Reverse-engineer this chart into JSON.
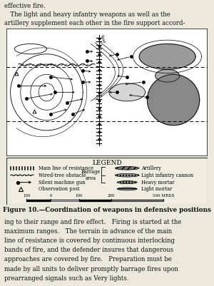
{
  "title": "Figure 10.—Coordination of weapons in defensive positions",
  "bg_color": "#ede8dc",
  "map_bg": "#ffffff",
  "text_color": "#111111",
  "header_texts": [
    "effective fire.",
    "   The light and heavy infantry weapons as well as the",
    "artillery supplement each other in the fire support accord-"
  ],
  "footer_texts": [
    "ing to their range and fire effect.   Firing is started at the",
    "maximum ranges.   The terrain in advance of the main",
    "line of resistance is covered by continuous interlocking",
    "bands of fire, and the defender insures that dangerous",
    "approaches are covered by fire.   Preparation must be",
    "made by all units to deliver promptly barrage fires upon",
    "prearranged signals such as Very lights."
  ],
  "legend_items_left": [
    "Main line of resistance",
    "Wired-tree obstacle",
    "Silent machine gun",
    "Observation post"
  ],
  "legend_items_right": [
    "Artillery",
    "Light infantry cannon",
    "Heavy mortar",
    "Light mortar"
  ],
  "legend_title": "LEGEND",
  "barrage_label": "Barrage\narea",
  "scale_marks": [
    "100",
    "0",
    "100",
    "200",
    "500 MRDS"
  ]
}
